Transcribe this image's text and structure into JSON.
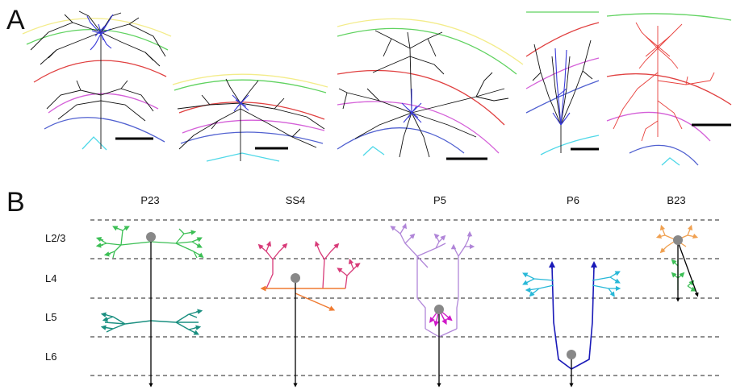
{
  "panel_a": {
    "label": "A",
    "neurons": [
      {
        "name": "p23-reconstruction",
        "axon_color": "#000000",
        "dendrite_color": "#3a3ad8"
      },
      {
        "name": "ss4-reconstruction",
        "axon_color": "#000000",
        "dendrite_color": "#3a3ad8"
      },
      {
        "name": "p5-reconstruction",
        "axon_color": "#000000",
        "dendrite_color": "#3a3ad8"
      },
      {
        "name": "p6-reconstruction",
        "axon_color": "#000000",
        "dendrite_color": "#3a3ad8"
      },
      {
        "name": "b23-reconstruction",
        "axon_color": "#e8403c",
        "dendrite_color": "#e8403c"
      }
    ],
    "boundary_colors": [
      "#f3ec8a",
      "#5fd25f",
      "#e04040",
      "#d45fd8",
      "#5060d0",
      "#4fd8e8"
    ]
  },
  "panel_b": {
    "label": "B",
    "cell_types": [
      "P23",
      "SS4",
      "P5",
      "P6",
      "B23"
    ],
    "layers": [
      "L2/3",
      "L4",
      "L5",
      "L6"
    ],
    "colors": {
      "p23_upper": "#3cbf55",
      "p23_lower": "#1a8f80",
      "ss4_dendrite": "#d83a78",
      "ss4_axon": "#ef7a30",
      "p5": "#b085d8",
      "p5_basal": "#d018c8",
      "p6_dendrite": "#28b8d8",
      "p6_apical": "#1a1ab8",
      "b23": "#f0a050",
      "b23_lower": "#3cbf55",
      "soma": "#888888",
      "axon": "#000000"
    }
  }
}
